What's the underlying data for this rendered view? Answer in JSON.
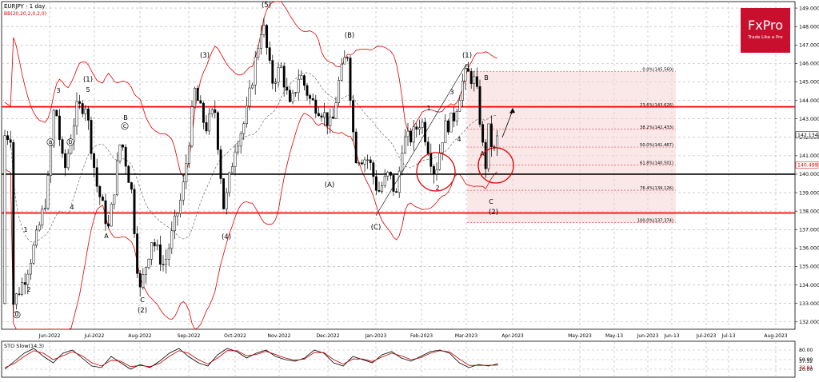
{
  "chart_data": [
    {
      "type": "candlestick",
      "title": "EURJPY - 1 day",
      "indicator_label": "BB(20,20,2,0,2,0)",
      "x_tick_labels": [
        "Jun-2022",
        "Jul-2022",
        "Aug-2022",
        "Sep-2022",
        "Oct-2022",
        "Nov-2022",
        "Dec-2022",
        "Jan-2023",
        "Feb-2023",
        "Mar-2023",
        "Apr-2023",
        "May-2023",
        "May-13",
        "Jun-2023",
        "Jun-13",
        "Jul-2023",
        "Jul-13",
        "Aug-2023"
      ],
      "y_tick_labels": [
        "149.000",
        "148.000",
        "147.000",
        "146.000",
        "145.000",
        "144.000",
        "143.000",
        "142.000",
        "141.000",
        "140.000",
        "139.000",
        "138.000",
        "137.000",
        "136.000",
        "135.000",
        "134.000",
        "133.000",
        "132.000"
      ],
      "ylim": [
        131.6,
        149.35
      ],
      "current_price_label": "142.134",
      "marked_price_label": "140.499",
      "horizontal_levels": [
        {
          "price": 143.65,
          "color": "#ff0000"
        },
        {
          "price": 140.0,
          "color": "#000000"
        },
        {
          "price": 137.9,
          "color": "#ff0000"
        }
      ],
      "fibonacci_labels": [
        "0.0%(145.560)",
        "23.6%(143.626)",
        "38.2%(142.433)",
        "50.0%(141.467)",
        "61.8%(140.501)",
        "76.4%(139.126)",
        "100.0%(137.374)"
      ],
      "fibonacci_prices": [
        145.56,
        143.626,
        142.433,
        141.467,
        140.501,
        139.126,
        137.374
      ],
      "wave_labels": [
        "0",
        "1",
        "2",
        "3",
        "(1)",
        "5",
        "4",
        "a",
        "b",
        "c",
        "A",
        "B",
        "C",
        "(2)",
        "(3)",
        "(4)",
        "(5)",
        "(A)",
        "(B)",
        "(C)",
        "(1)",
        "5",
        "1",
        "2",
        "3",
        "4",
        "A",
        "B",
        "C",
        "(2)"
      ],
      "price_series": [
        {
          "date": "2022-05-12",
          "price": 133.0
        },
        {
          "date": "2022-05-20",
          "price": 134.5
        },
        {
          "date": "2022-05-27",
          "price": 136.5
        },
        {
          "date": "2022-06-03",
          "price": 139.0
        },
        {
          "date": "2022-06-08",
          "price": 144.0
        },
        {
          "date": "2022-06-14",
          "price": 140.0
        },
        {
          "date": "2022-06-22",
          "price": 143.5
        },
        {
          "date": "2022-06-28",
          "price": 143.8
        },
        {
          "date": "2022-07-05",
          "price": 139.5
        },
        {
          "date": "2022-07-13",
          "price": 137.0
        },
        {
          "date": "2022-07-21",
          "price": 142.0
        },
        {
          "date": "2022-07-28",
          "price": 139.0
        },
        {
          "date": "2022-08-02",
          "price": 133.5
        },
        {
          "date": "2022-08-10",
          "price": 136.5
        },
        {
          "date": "2022-08-18",
          "price": 135.0
        },
        {
          "date": "2022-08-24",
          "price": 137.0
        },
        {
          "date": "2022-08-30",
          "price": 139.0
        },
        {
          "date": "2022-09-07",
          "price": 144.5
        },
        {
          "date": "2022-09-14",
          "price": 142.5
        },
        {
          "date": "2022-09-20",
          "price": 143.5
        },
        {
          "date": "2022-09-26",
          "price": 138.0
        },
        {
          "date": "2022-10-03",
          "price": 141.5
        },
        {
          "date": "2022-10-10",
          "price": 143.0
        },
        {
          "date": "2022-10-17",
          "price": 146.5
        },
        {
          "date": "2022-10-21",
          "price": 148.3
        },
        {
          "date": "2022-10-27",
          "price": 145.0
        },
        {
          "date": "2022-11-02",
          "price": 145.8
        },
        {
          "date": "2022-11-08",
          "price": 143.5
        },
        {
          "date": "2022-11-14",
          "price": 145.5
        },
        {
          "date": "2022-11-21",
          "price": 144.0
        },
        {
          "date": "2022-11-28",
          "price": 143.5
        },
        {
          "date": "2022-12-05",
          "price": 142.5
        },
        {
          "date": "2022-12-09",
          "price": 144.8
        },
        {
          "date": "2022-12-15",
          "price": 146.7
        },
        {
          "date": "2022-12-20",
          "price": 141.0
        },
        {
          "date": "2022-12-29",
          "price": 140.8
        },
        {
          "date": "2023-01-04",
          "price": 139.0
        },
        {
          "date": "2023-01-11",
          "price": 140.0
        },
        {
          "date": "2023-01-16",
          "price": 138.8
        },
        {
          "date": "2023-01-20",
          "price": 141.8
        },
        {
          "date": "2023-01-26",
          "price": 142.0
        },
        {
          "date": "2023-02-01",
          "price": 143.0
        },
        {
          "date": "2023-02-07",
          "price": 141.0
        },
        {
          "date": "2023-02-10",
          "price": 140.0
        },
        {
          "date": "2023-02-16",
          "price": 142.5
        },
        {
          "date": "2023-02-22",
          "price": 143.0
        },
        {
          "date": "2023-02-28",
          "price": 145.0
        },
        {
          "date": "2023-03-03",
          "price": 145.5
        },
        {
          "date": "2023-03-08",
          "price": 145.0
        },
        {
          "date": "2023-03-10",
          "price": 144.0
        },
        {
          "date": "2023-03-13",
          "price": 141.5
        },
        {
          "date": "2023-03-15",
          "price": 140.5
        },
        {
          "date": "2023-03-17",
          "price": 142.5
        },
        {
          "date": "2023-03-20",
          "price": 141.0
        },
        {
          "date": "2023-03-23",
          "price": 142.1
        }
      ]
    },
    {
      "type": "line",
      "title": "STO Slow(14,3)",
      "ylim": [
        0,
        100
      ],
      "y_tick_labels": [
        "80.00",
        "50.00",
        "20.00"
      ],
      "last_value_labels": [
        "37.32",
        "32.91"
      ],
      "series": [
        {
          "values": [
            20,
            45,
            70,
            85,
            60,
            40,
            70,
            80,
            55,
            30,
            25,
            60,
            40,
            20,
            35,
            25,
            45,
            70,
            85,
            60,
            40,
            30,
            65,
            85,
            75,
            55,
            70,
            80,
            60,
            50,
            45,
            55,
            80,
            70,
            40,
            30,
            60,
            50,
            40,
            65,
            75,
            55,
            45,
            60,
            75,
            80,
            70,
            40,
            25,
            35,
            30,
            37.32
          ]
        },
        {
          "values": [
            25,
            38,
            60,
            78,
            70,
            50,
            62,
            75,
            62,
            40,
            30,
            48,
            45,
            28,
            32,
            28,
            38,
            60,
            78,
            70,
            50,
            36,
            55,
            78,
            78,
            62,
            66,
            76,
            66,
            55,
            48,
            52,
            72,
            72,
            50,
            36,
            52,
            52,
            44,
            58,
            70,
            62,
            50,
            56,
            70,
            78,
            74,
            52,
            32,
            32,
            32,
            32.91
          ]
        }
      ]
    }
  ],
  "branding": {
    "logo_text": "FxPro",
    "tagline": "Trade Like a Pro",
    "logo_bg": "#c8102e"
  }
}
